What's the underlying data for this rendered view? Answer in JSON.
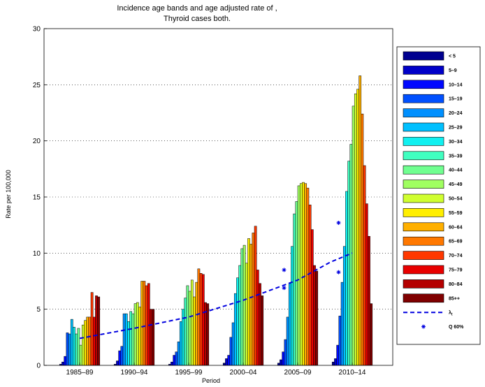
{
  "chart_data": {
    "type": "bar",
    "title_lines": [
      "Incidence age bands and age adjusted rate of ,",
      "Thyroid cases both."
    ],
    "xlabel": "Period",
    "ylabel": "Rate per 100,000",
    "ylim": [
      0,
      30
    ],
    "yticks": [
      "0",
      "5",
      "10",
      "15",
      "20",
      "25",
      "30"
    ],
    "grid": true,
    "legend_position": "right",
    "categories": [
      "1985–89",
      "1990–94",
      "1995–99",
      "2000–04",
      "2005–09",
      "2010–14"
    ],
    "series": [
      {
        "name": "< 5",
        "color": "#00008f",
        "values": [
          0.1,
          0.1,
          0.1,
          0.2,
          0.2,
          0.3
        ]
      },
      {
        "name": "5–9",
        "color": "#0000c8",
        "values": [
          0.3,
          0.4,
          0.3,
          0.6,
          0.5,
          0.6
        ]
      },
      {
        "name": "10–14",
        "color": "#0008ff",
        "values": [
          0.8,
          1.3,
          0.9,
          0.9,
          1.2,
          1.8
        ]
      },
      {
        "name": "15–19",
        "color": "#0050ff",
        "values": [
          2.9,
          1.7,
          1.2,
          2.5,
          2.3,
          4.4
        ]
      },
      {
        "name": "20–24",
        "color": "#0090ff",
        "values": [
          2.8,
          4.6,
          2.1,
          3.8,
          4.3,
          7.4
        ]
      },
      {
        "name": "25–29",
        "color": "#00c0ff",
        "values": [
          4.1,
          4.6,
          3.9,
          6.4,
          7.3,
          10.6
        ]
      },
      {
        "name": "30–34",
        "color": "#10f0f0",
        "values": [
          3.4,
          3.9,
          5.0,
          7.8,
          10.6,
          15.5
        ]
      },
      {
        "name": "35–39",
        "color": "#40ffc0",
        "values": [
          2.8,
          4.8,
          6.0,
          8.9,
          13.5,
          18.2
        ]
      },
      {
        "name": "40–44",
        "color": "#70ff90",
        "values": [
          3.3,
          4.6,
          7.1,
          10.4,
          14.6,
          19.7
        ]
      },
      {
        "name": "45–49",
        "color": "#a0ff60",
        "values": [
          1.8,
          5.5,
          6.6,
          10.7,
          16.0,
          23.1
        ]
      },
      {
        "name": "50–54",
        "color": "#d0ff30",
        "values": [
          3.6,
          5.6,
          7.6,
          9.1,
          16.2,
          24.2
        ]
      },
      {
        "name": "55–59",
        "color": "#ffef00",
        "values": [
          4.0,
          5.2,
          6.1,
          11.3,
          16.3,
          24.6
        ]
      },
      {
        "name": "60–64",
        "color": "#ffb000",
        "values": [
          4.3,
          7.5,
          7.4,
          10.8,
          16.2,
          25.8
        ]
      },
      {
        "name": "65–69",
        "color": "#ff7800",
        "values": [
          4.3,
          7.5,
          8.6,
          11.8,
          15.8,
          22.4
        ]
      },
      {
        "name": "70–74",
        "color": "#ff3800",
        "values": [
          6.5,
          7.1,
          8.2,
          12.4,
          14.3,
          17.8
        ]
      },
      {
        "name": "75–79",
        "color": "#e80000",
        "values": [
          4.3,
          7.3,
          8.1,
          8.5,
          12.1,
          14.4
        ]
      },
      {
        "name": "80–84",
        "color": "#b40000",
        "values": [
          6.2,
          5.0,
          5.6,
          7.3,
          8.9,
          11.5
        ]
      },
      {
        "name": "85++",
        "color": "#800000",
        "values": [
          6.1,
          5.0,
          5.5,
          6.2,
          8.4,
          5.5
        ]
      }
    ],
    "lambda_t": {
      "name": "λt",
      "color": "#0000e0",
      "x": [
        0.0,
        1.0,
        2.0,
        3.0,
        4.0,
        4.6,
        5.0
      ],
      "y": [
        2.4,
        3.3,
        4.3,
        5.8,
        7.6,
        9.2,
        10.0
      ]
    },
    "q60": {
      "name": "Q 60%",
      "color": "#0000e0",
      "points": [
        {
          "x": 3.75,
          "y": 6.9
        },
        {
          "x": 3.75,
          "y": 8.5
        },
        {
          "x": 4.75,
          "y": 8.3
        },
        {
          "x": 4.75,
          "y": 12.7
        }
      ]
    }
  }
}
